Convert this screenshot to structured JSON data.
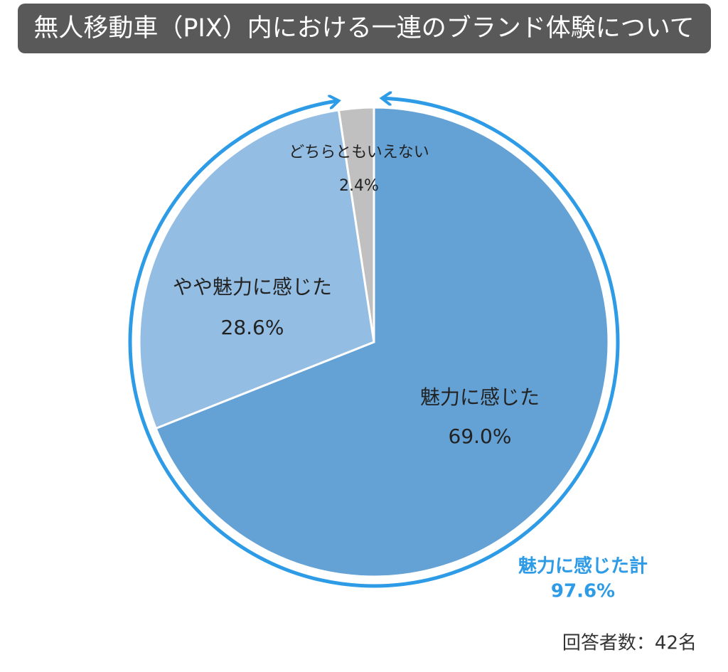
{
  "chart_data": {
    "type": "pie",
    "title": "無人移動車（PIX）内における一連のブランド体験について",
    "categories": [
      "魅力に感じた",
      "やや魅力に感じた",
      "どちらともいえない"
    ],
    "values": [
      69.0,
      28.6,
      2.4
    ],
    "value_labels": [
      "69.0%",
      "28.6%",
      "2.4%"
    ],
    "colors": [
      "#64a2d6",
      "#94bde3",
      "#c0c0c0"
    ],
    "total_annotation": {
      "text": "魅力に感じた計",
      "value": 97.6,
      "value_label": "97.6%",
      "color": "#2e9be6"
    },
    "note": "回答者数：42名"
  }
}
